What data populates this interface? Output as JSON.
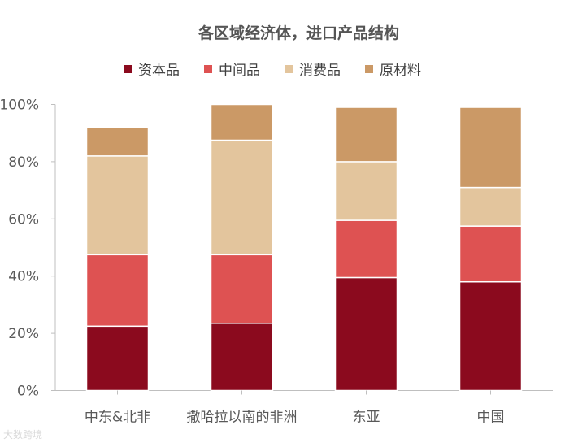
{
  "chart_data": {
    "type": "bar",
    "stacked": true,
    "title": "各区域经济体，进口产品结构",
    "categories": [
      "中东&北非",
      "撒哈拉以南的非洲",
      "东亚",
      "中国"
    ],
    "series": [
      {
        "name": "资本品",
        "color": "#8B0A1E",
        "values": [
          22.5,
          23.5,
          39.5,
          38
        ]
      },
      {
        "name": "中间品",
        "color": "#DE5252",
        "values": [
          25,
          24,
          20,
          19.5
        ]
      },
      {
        "name": "消费品",
        "color": "#E3C59D",
        "values": [
          34.5,
          40,
          20.5,
          13.5
        ]
      },
      {
        "name": "原材料",
        "color": "#CB9966",
        "values": [
          10,
          12.5,
          19,
          28
        ]
      }
    ],
    "ylim": [
      0,
      100
    ],
    "yticks": [
      "0%",
      "20%",
      "40%",
      "60%",
      "80%",
      "100%"
    ],
    "legend_position": "top",
    "grid": false
  },
  "watermark": "大数跨境"
}
